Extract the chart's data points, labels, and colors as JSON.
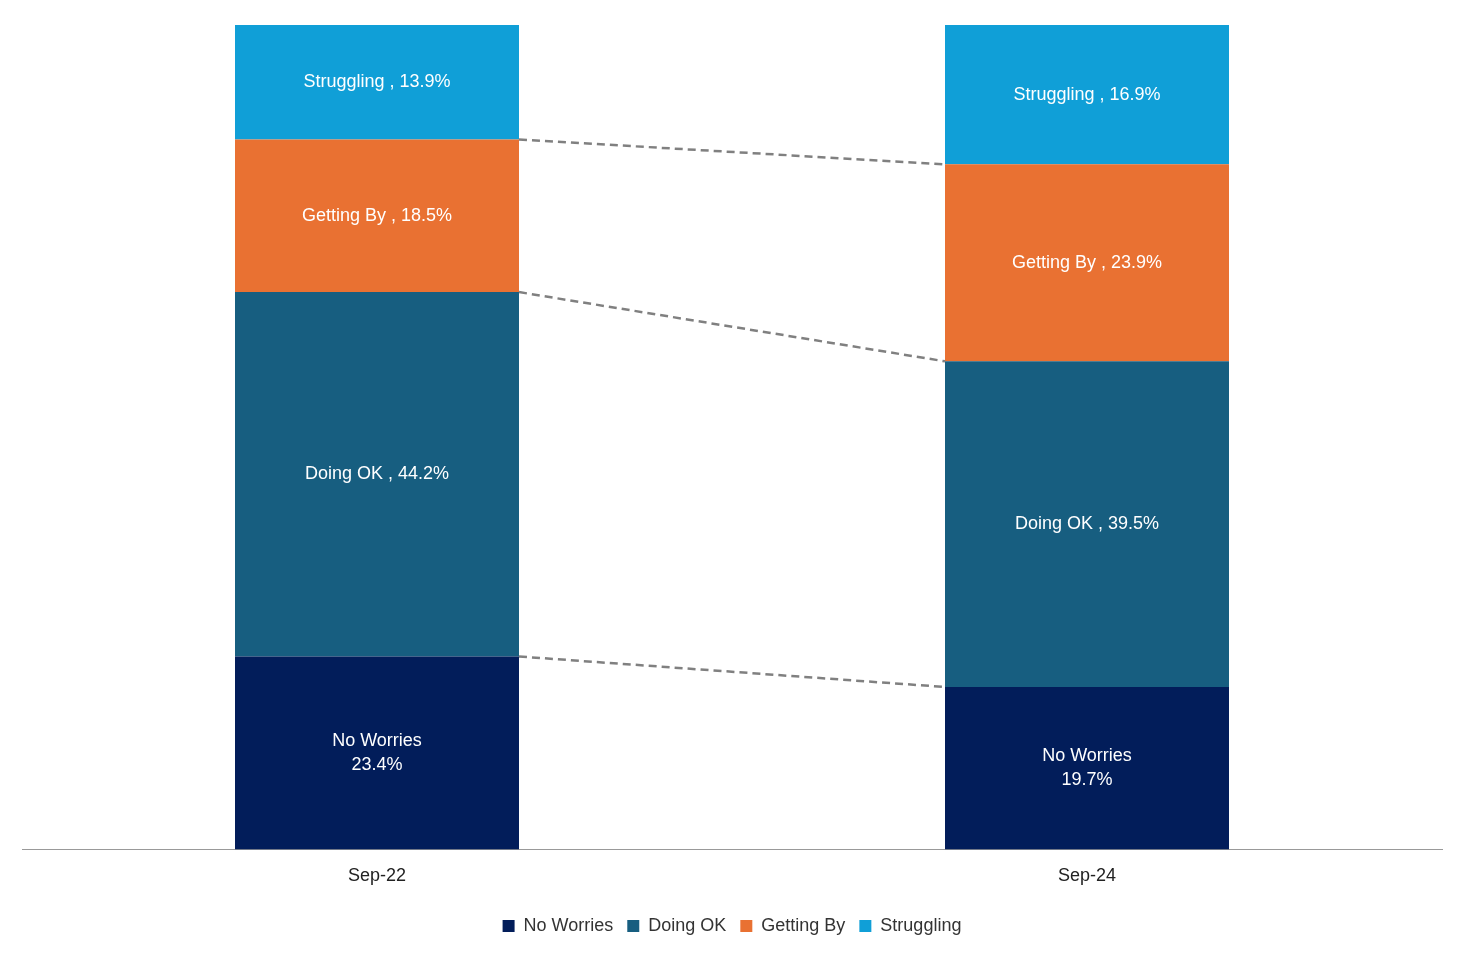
{
  "chart_data": {
    "type": "bar",
    "stacked": true,
    "categories": [
      "Sep-22",
      "Sep-24"
    ],
    "ylim": [
      0,
      100
    ],
    "tick_labels": "x",
    "grid": false,
    "legend": "bottom",
    "line_style": "dashed",
    "series": [
      {
        "name": "No Worries",
        "color": "#021d5a",
        "values": [
          23.4,
          19.7
        ],
        "value_labels": [
          "No Worries\n23.4%",
          "No Worries\n19.7%"
        ]
      },
      {
        "name": "Doing OK",
        "color": "#175e80",
        "values": [
          44.2,
          39.5
        ],
        "value_labels": [
          "Doing OK , 44.2%",
          "Doing OK , 39.5%"
        ]
      },
      {
        "name": "Getting By",
        "color": "#e97132",
        "values": [
          18.5,
          23.9
        ],
        "value_labels": [
          "Getting By , 18.5%",
          "Getting By , 23.9%"
        ]
      },
      {
        "name": "Struggling",
        "color": "#109fd7",
        "values": [
          13.9,
          16.9
        ],
        "value_labels": [
          "Struggling , 13.9%",
          "Struggling , 16.9%"
        ]
      }
    ]
  }
}
